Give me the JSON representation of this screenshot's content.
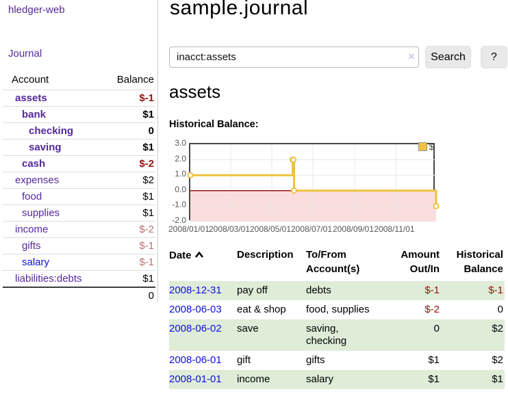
{
  "colors": {
    "link_purple": "#53289b",
    "link_blue": "#0f0fdd",
    "negative": "#991111",
    "negative_muted": "#bc6f6f",
    "row_highlight_green": "#deecd8",
    "button_bg": "#e9e9e9",
    "clear_icon": "#cfc5e5",
    "tick_text": "#545454"
  },
  "sidebar": {
    "brand": "hledger-web",
    "nav": {
      "journal": "Journal"
    },
    "accounts_table": {
      "account_header": "Account",
      "balance_header": "Balance",
      "rows": [
        {
          "name": "assets",
          "balance": "$-1",
          "depth": 1,
          "bold": true,
          "neg": "strong"
        },
        {
          "name": "bank",
          "balance": "$1",
          "depth": 2,
          "bold": true,
          "neg": "none"
        },
        {
          "name": "checking",
          "balance": "0",
          "depth": 3,
          "bold": true,
          "neg": "none"
        },
        {
          "name": "saving",
          "balance": "$1",
          "depth": 3,
          "bold": true,
          "neg": "none"
        },
        {
          "name": "cash",
          "balance": "$-2",
          "depth": 2,
          "bold": true,
          "neg": "strong"
        },
        {
          "name": "expenses",
          "balance": "$2",
          "depth": 1,
          "bold": false,
          "neg": "none"
        },
        {
          "name": "food",
          "balance": "$1",
          "depth": 2,
          "bold": false,
          "neg": "none"
        },
        {
          "name": "supplies",
          "balance": "$1",
          "depth": 2,
          "bold": false,
          "neg": "none"
        },
        {
          "name": "income",
          "balance": "$-2",
          "depth": 1,
          "bold": false,
          "neg": "muted"
        },
        {
          "name": "gifts",
          "balance": "$-1",
          "depth": 2,
          "bold": false,
          "neg": "muted"
        },
        {
          "name": "salary",
          "balance": "$-1",
          "depth": 2,
          "bold": false,
          "neg": "muted",
          "link_color": "blue"
        },
        {
          "name": "liabilities:debts",
          "balance": "$1",
          "depth": 1,
          "bold": false,
          "neg": "none"
        }
      ],
      "total_balance": "0"
    }
  },
  "main": {
    "title": "sample.journal",
    "search": {
      "value": "inacct:assets",
      "clear_icon": "×",
      "search_button": "Search",
      "help_button": "?"
    },
    "account_heading": "assets",
    "chart_title": "Historical Balance:"
  },
  "chart_data": {
    "type": "line",
    "step": true,
    "title": "Historical Balance:",
    "xlim": [
      "2008-01-01",
      "2008-12-31"
    ],
    "ylim": [
      -2,
      3
    ],
    "grid": true,
    "legend_position": "top-right",
    "x_ticks": [
      {
        "date": "2008-01-01",
        "label": "2008/01/01"
      },
      {
        "date": "2008-03-01",
        "label": "2008/03/01"
      },
      {
        "date": "2008-05-01",
        "label": "2008/05/01"
      },
      {
        "date": "2008-07-01",
        "label": "2008/07/01"
      },
      {
        "date": "2008-09-01",
        "label": "2008/09/01"
      },
      {
        "date": "2008-11-01",
        "label": "2008/11/01"
      }
    ],
    "y_ticks": [
      {
        "value": 3,
        "label": "3.0"
      },
      {
        "value": 2,
        "label": "2.0"
      },
      {
        "value": 1,
        "label": "1.0"
      },
      {
        "value": 0,
        "label": "0.0"
      },
      {
        "value": -1,
        "label": "-1.0"
      },
      {
        "value": -2,
        "label": "-2.0"
      }
    ],
    "series": [
      {
        "name": "$",
        "color": "#edc240",
        "points": [
          {
            "date": "2008-01-01",
            "value": 1
          },
          {
            "date": "2008-06-01",
            "value": 2
          },
          {
            "date": "2008-06-02",
            "value": 2
          },
          {
            "date": "2008-06-03",
            "value": 0
          },
          {
            "date": "2008-12-31",
            "value": -1
          }
        ]
      }
    ],
    "colors": {
      "grid": "#e8e8e8",
      "zero_line": "#8b0000",
      "negative_region": "#fadede",
      "plot_border": "#474747"
    }
  },
  "register": {
    "headers": {
      "date": "Date",
      "date_sort_icon": "chevron-up",
      "description": "Description",
      "accounts": "To/From\nAccount(s)",
      "amount": "Amount\nOut/In",
      "balance": "Historical\nBalance"
    },
    "rows": [
      {
        "date": "2008-12-31",
        "description": "pay off",
        "accounts": "debts",
        "amount": "$-1",
        "amount_negative": true,
        "balance": "$-1",
        "balance_negative": true
      },
      {
        "date": "2008-06-03",
        "description": "eat & shop",
        "accounts": "food, supplies",
        "amount": "$-2",
        "amount_negative": true,
        "balance": "0",
        "balance_negative": false
      },
      {
        "date": "2008-06-02",
        "description": "save",
        "accounts": "saving,\nchecking",
        "amount": "0",
        "amount_negative": false,
        "balance": "$2",
        "balance_negative": false
      },
      {
        "date": "2008-06-01",
        "description": "gift",
        "accounts": "gifts",
        "amount": "$1",
        "amount_negative": false,
        "balance": "$2",
        "balance_negative": false
      },
      {
        "date": "2008-01-01",
        "description": "income",
        "accounts": "salary",
        "amount": "$1",
        "amount_negative": false,
        "balance": "$1",
        "balance_negative": false
      }
    ]
  }
}
